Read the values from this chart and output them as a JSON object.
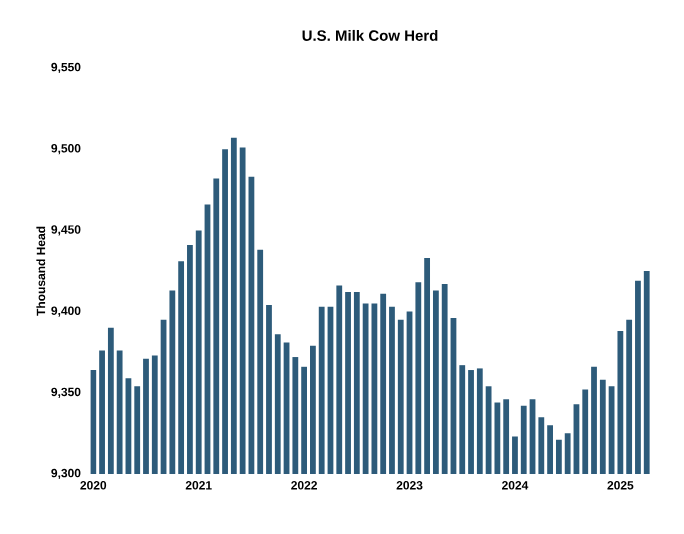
{
  "chart_data": {
    "type": "bar",
    "title": "U.S. Milk Cow Herd",
    "ylabel": "Thousand Head",
    "color": "#2d5b7a",
    "categories": [
      "2020",
      null,
      null,
      null,
      null,
      null,
      null,
      null,
      null,
      null,
      null,
      null,
      "2021",
      null,
      null,
      null,
      null,
      null,
      null,
      null,
      null,
      null,
      null,
      null,
      "2022",
      null,
      null,
      null,
      null,
      null,
      null,
      null,
      null,
      null,
      null,
      null,
      "2023",
      null,
      null,
      null,
      null,
      null,
      null,
      null,
      null,
      null,
      null,
      null,
      "2024",
      null,
      null,
      null,
      null,
      null,
      null,
      null,
      null,
      null,
      null,
      null,
      "2025",
      null,
      null,
      null
    ],
    "values": [
      9364,
      9376,
      9390,
      9376,
      9359,
      9354,
      9371,
      9373,
      9395,
      9413,
      9431,
      9441,
      9450,
      9466,
      9482,
      9500,
      9507,
      9501,
      9483,
      9438,
      9404,
      9386,
      9381,
      9372,
      9366,
      9379,
      9403,
      9403,
      9416,
      9412,
      9412,
      9405,
      9405,
      9411,
      9403,
      9395,
      9400,
      9418,
      9433,
      9413,
      9417,
      9396,
      9367,
      9364,
      9365,
      9354,
      9344,
      9346,
      9323,
      9342,
      9346,
      9335,
      9330,
      9321,
      9325,
      9343,
      9352,
      9366,
      9358,
      9354,
      9388,
      9395,
      9419,
      9425
    ],
    "ylim": [
      9300,
      9550
    ],
    "yticks": [
      {
        "value": 9300,
        "label": "9,300"
      },
      {
        "value": 9350,
        "label": "9,350"
      },
      {
        "value": 9400,
        "label": "9,400"
      },
      {
        "value": 9450,
        "label": "9,450"
      },
      {
        "value": 9500,
        "label": "9,500"
      },
      {
        "value": 9550,
        "label": "9,550"
      }
    ],
    "grid": false
  }
}
